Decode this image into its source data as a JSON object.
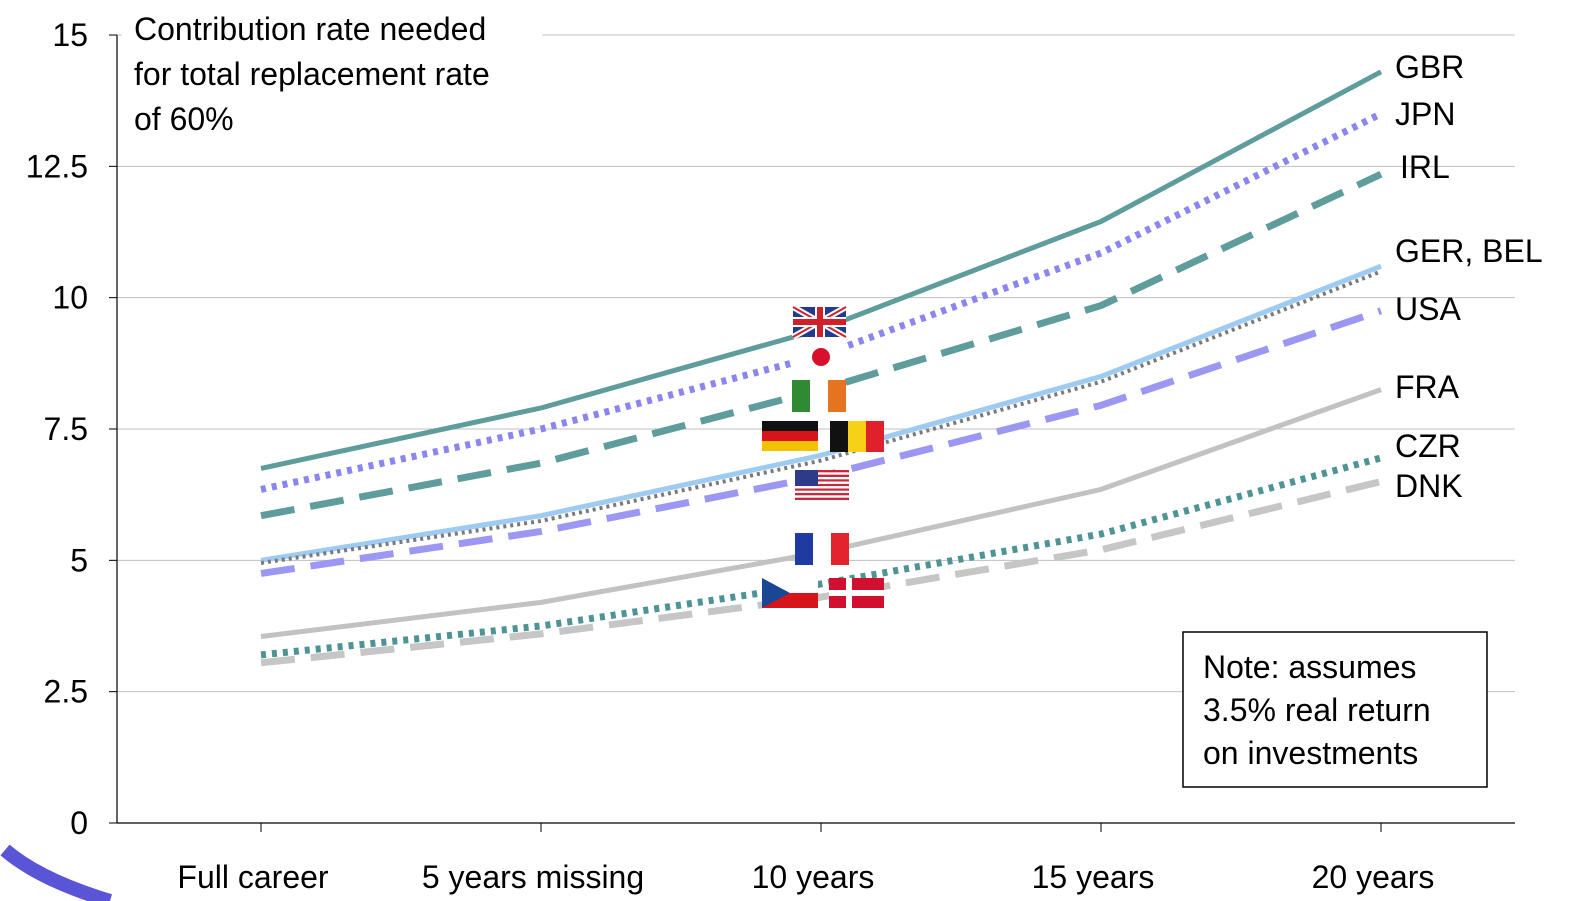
{
  "chart_data": {
    "type": "line",
    "categories": [
      "Full career",
      "5 years missing",
      "10 years",
      "15 years",
      "20 years"
    ],
    "ylim": [
      0,
      15
    ],
    "yticks": [
      0,
      2.5,
      5,
      7.5,
      10,
      12.5,
      15
    ],
    "ytick_labels": [
      "0",
      "2.5",
      "5",
      "7.5",
      "10",
      "12.5",
      "15"
    ],
    "grid": true,
    "annotation_lines": [
      "Contribution rate needed",
      "for total replacement rate",
      "of 60%"
    ],
    "note_lines": [
      "Note: assumes",
      "3.5% real return",
      "on investments"
    ],
    "series": [
      {
        "name": "GBR",
        "values": [
          6.75,
          7.9,
          9.4,
          11.45,
          14.3
        ],
        "color": "#5f9c9c",
        "style": "solid",
        "flag": "gbr"
      },
      {
        "name": "JPN",
        "values": [
          6.35,
          7.5,
          8.9,
          10.85,
          13.5
        ],
        "color": "#8b85f0",
        "style": "dotted",
        "flag": "jpn"
      },
      {
        "name": "IRL",
        "values": [
          5.85,
          6.85,
          8.25,
          9.85,
          12.35
        ],
        "color": "#5f9c9c",
        "style": "dashed",
        "flag": "irl"
      },
      {
        "name": "GER, BEL",
        "values": [
          5.0,
          5.85,
          7.0,
          8.5,
          10.6
        ],
        "color": "#9ecbf2",
        "style": "solid",
        "flag": "ger_bel"
      },
      {
        "name": "",
        "values": [
          4.95,
          5.75,
          6.9,
          8.4,
          10.5
        ],
        "color": "#7a7a7a",
        "style": "dotted-thin",
        "flag": ""
      },
      {
        "name": "USA",
        "values": [
          4.75,
          5.55,
          6.6,
          7.95,
          9.75
        ],
        "color": "#9c97f3",
        "style": "dashed",
        "flag": "usa"
      },
      {
        "name": "FRA",
        "values": [
          3.55,
          4.2,
          5.15,
          6.35,
          8.25
        ],
        "color": "#c2c2c2",
        "style": "solid",
        "flag": "fra"
      },
      {
        "name": "CZR",
        "values": [
          3.2,
          3.75,
          4.55,
          5.5,
          6.95
        ],
        "color": "#4f9494",
        "style": "dotted",
        "flag": "czr_dnk"
      },
      {
        "name": "DNK",
        "values": [
          3.05,
          3.6,
          4.3,
          5.2,
          6.5
        ],
        "color": "#c6c6c6",
        "style": "dashed",
        "flag": ""
      }
    ]
  }
}
